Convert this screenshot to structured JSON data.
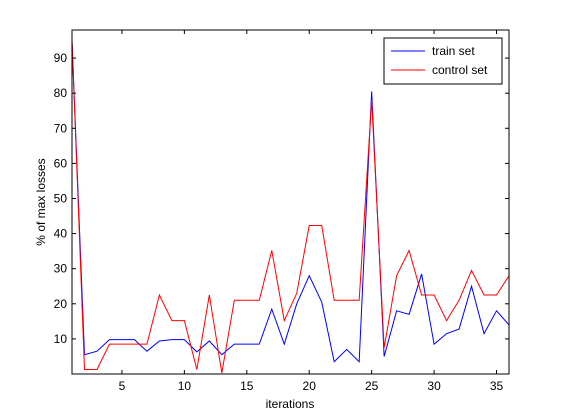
{
  "chart_data": {
    "type": "line",
    "title": "",
    "xlabel": "iterations",
    "ylabel": "% of max losses",
    "xlim": [
      1,
      36
    ],
    "ylim": [
      0,
      98
    ],
    "xticks": [
      5,
      10,
      15,
      20,
      25,
      30,
      35
    ],
    "yticks": [
      10,
      20,
      30,
      40,
      50,
      60,
      70,
      80,
      90
    ],
    "grid": false,
    "legend_position": "top-right",
    "x": [
      1,
      2,
      3,
      4,
      5,
      6,
      7,
      8,
      9,
      10,
      11,
      12,
      13,
      14,
      15,
      16,
      17,
      18,
      19,
      20,
      21,
      22,
      23,
      24,
      25,
      26,
      27,
      28,
      29,
      30,
      31,
      32,
      33,
      34,
      35,
      36
    ],
    "series": [
      {
        "name": "train set",
        "color": "#0000ff",
        "values": [
          95,
          5.5,
          6.5,
          9.8,
          9.8,
          9.8,
          6.5,
          9.4,
          9.8,
          9.8,
          6.3,
          9.4,
          5.5,
          8.5,
          8.5,
          8.5,
          18.5,
          8.5,
          20,
          28,
          20.5,
          3.5,
          7,
          3.5,
          80.5,
          5,
          18,
          17,
          28.5,
          8.5,
          11.5,
          12.8,
          25,
          11.5,
          18,
          14
        ]
      },
      {
        "name": "control set",
        "color": "#ff0000",
        "values": [
          95,
          1.3,
          1.3,
          8.5,
          8.5,
          8.5,
          8.5,
          22.5,
          15.2,
          15.2,
          1.3,
          22.5,
          0.3,
          21,
          21,
          21,
          35.2,
          15.2,
          23,
          42.3,
          42.3,
          21,
          21,
          21,
          78,
          7.5,
          28,
          35.2,
          22.5,
          22.5,
          15.2,
          21,
          29.5,
          22.5,
          22.5,
          28
        ]
      }
    ]
  }
}
